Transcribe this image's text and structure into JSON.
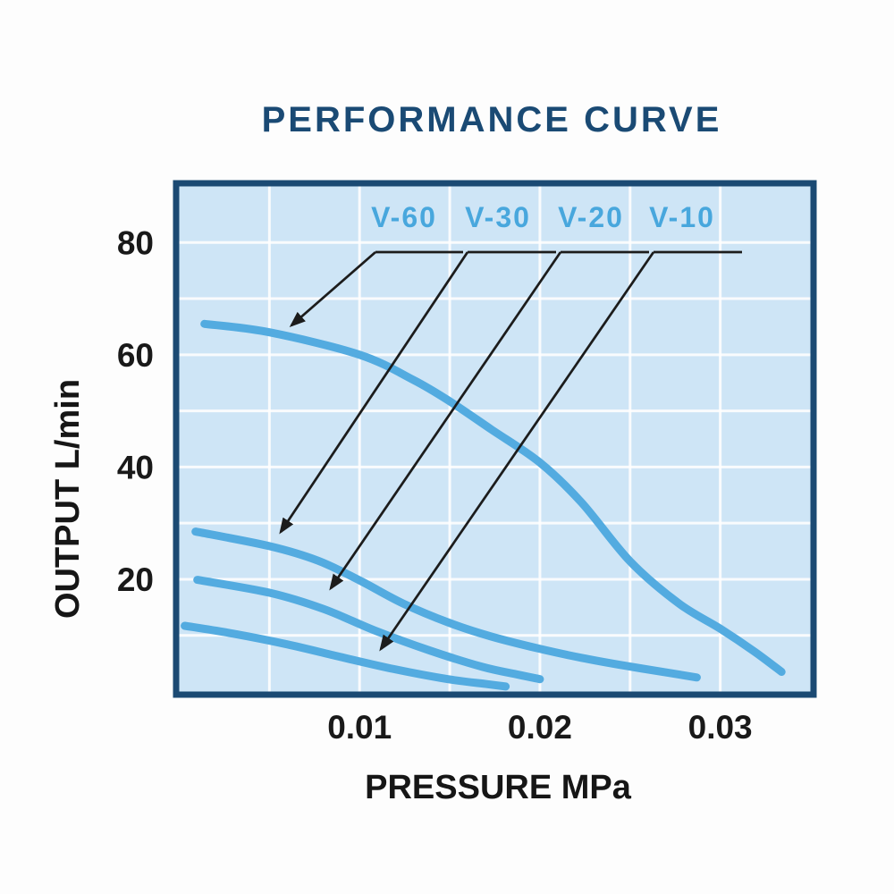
{
  "title": {
    "text": "PERFORMANCE CURVE",
    "color": "#1a4a74"
  },
  "chart_data": {
    "type": "line",
    "title": "PERFORMANCE CURVE",
    "xlabel": "PRESSURE MPa",
    "ylabel": "OUTPUT L/min",
    "xlim": [
      0,
      0.035
    ],
    "ylim": [
      0,
      90
    ],
    "x_ticks": [
      {
        "value": 0.01,
        "label": "0.01"
      },
      {
        "value": 0.02,
        "label": "0.02"
      },
      {
        "value": 0.03,
        "label": "0.03"
      }
    ],
    "y_ticks": [
      {
        "value": 20,
        "label": "20"
      },
      {
        "value": 40,
        "label": "40"
      },
      {
        "value": 60,
        "label": "60"
      },
      {
        "value": 80,
        "label": "80"
      }
    ],
    "grid": {
      "show": true,
      "x_step": 0.005,
      "y_step": 10,
      "color": "#ffffff"
    },
    "legend_position": "top-inside",
    "series": [
      {
        "name": "V-60",
        "points": [
          [
            0.0014,
            65.5
          ],
          [
            0.005,
            64
          ],
          [
            0.01,
            60
          ],
          [
            0.013,
            55.5
          ],
          [
            0.015,
            51.7
          ],
          [
            0.0173,
            46.7
          ],
          [
            0.02,
            40.8
          ],
          [
            0.0223,
            33.7
          ],
          [
            0.025,
            23.2
          ],
          [
            0.0277,
            15.7
          ],
          [
            0.03,
            11.2
          ],
          [
            0.0319,
            7.1
          ],
          [
            0.0334,
            3.5
          ]
        ]
      },
      {
        "name": "V-30",
        "points": [
          [
            0.0009,
            28.5
          ],
          [
            0.005,
            25.9
          ],
          [
            0.0077,
            23.3
          ],
          [
            0.01,
            19.8
          ],
          [
            0.0124,
            15.7
          ],
          [
            0.015,
            12.2
          ],
          [
            0.0173,
            9.8
          ],
          [
            0.02,
            7.6
          ],
          [
            0.0223,
            6.0
          ],
          [
            0.0247,
            4.6
          ],
          [
            0.0272,
            3.3
          ],
          [
            0.0287,
            2.5
          ]
        ]
      },
      {
        "name": "V-20",
        "points": [
          [
            0.001,
            19.9
          ],
          [
            0.005,
            17.6
          ],
          [
            0.008,
            14.7
          ],
          [
            0.0109,
            10.8
          ],
          [
            0.0139,
            7.3
          ],
          [
            0.0168,
            4.4
          ],
          [
            0.0188,
            3.0
          ],
          [
            0.02,
            2.2
          ]
        ]
      },
      {
        "name": "V-10",
        "points": [
          [
            0.0003,
            11.7
          ],
          [
            0.003,
            10.3
          ],
          [
            0.006,
            8.4
          ],
          [
            0.0089,
            6.2
          ],
          [
            0.0119,
            4.0
          ],
          [
            0.0149,
            2.2
          ],
          [
            0.0171,
            1.3
          ],
          [
            0.0181,
            0.9
          ]
        ]
      }
    ],
    "colors": {
      "curve": "#53abe0",
      "series_label": "#48a7dd",
      "plot_background": "#cee5f6",
      "frame": "#1b4a73",
      "axis_text": "#161616",
      "arrow": "#1c1c1c"
    }
  }
}
